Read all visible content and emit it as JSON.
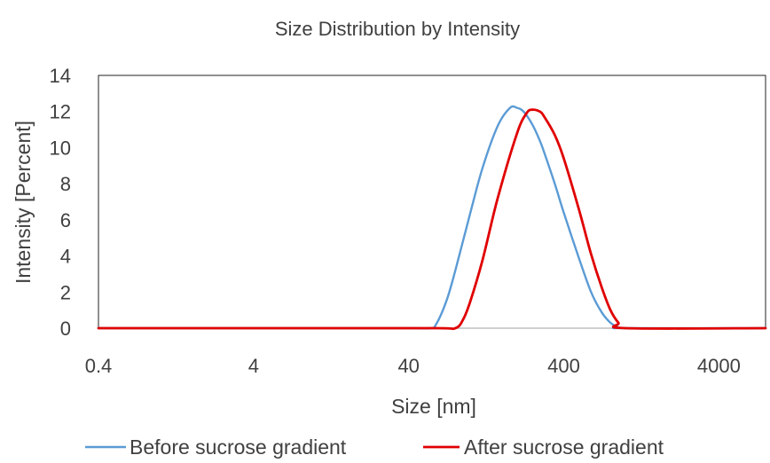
{
  "chart_data": {
    "type": "line",
    "title": "Size Distribution by Intensity",
    "xlabel": "Size [nm]",
    "ylabel": "Intensity [Percent]",
    "x_scale": "log",
    "xlim": [
      0.4,
      8000
    ],
    "ylim": [
      0,
      14
    ],
    "x_ticks": [
      0.4,
      4,
      40,
      400,
      4000
    ],
    "x_tick_labels": [
      "0.4",
      "4",
      "40",
      "400",
      "4000"
    ],
    "y_ticks": [
      0,
      2,
      4,
      6,
      8,
      10,
      12,
      14
    ],
    "y_tick_labels": [
      "0",
      "2",
      "4",
      "6",
      "8",
      "10",
      "12",
      "14"
    ],
    "grid": false,
    "legend_position": "bottom",
    "series": [
      {
        "name": "Before sucrose gradient",
        "color": "#5b9bd5",
        "x": [
          0.4,
          1,
          10,
          40,
          55,
          60,
          70,
          80,
          100,
          120,
          150,
          180,
          200,
          220,
          250,
          280,
          300,
          350,
          400,
          500,
          600,
          700,
          800,
          900,
          1000,
          8000
        ],
        "y": [
          0,
          0,
          0,
          0,
          0,
          0.2,
          1.5,
          3.2,
          6.4,
          8.9,
          11.2,
          12.2,
          12.2,
          12.0,
          11.3,
          10.4,
          9.7,
          8.0,
          6.4,
          3.9,
          2.0,
          0.9,
          0.3,
          0.05,
          0,
          0
        ]
      },
      {
        "name": "After sucrose gradient",
        "color": "#e00000",
        "x": [
          0.4,
          1,
          10,
          60,
          80,
          90,
          100,
          120,
          150,
          200,
          230,
          250,
          280,
          300,
          350,
          400,
          500,
          600,
          700,
          800,
          900,
          1000,
          8000
        ],
        "y": [
          0,
          0,
          0,
          0,
          0,
          0.5,
          1.5,
          3.8,
          7.2,
          10.8,
          11.9,
          12.1,
          12.0,
          11.7,
          10.7,
          9.4,
          6.6,
          4.1,
          2.3,
          1.0,
          0.3,
          0,
          0
        ]
      }
    ]
  }
}
